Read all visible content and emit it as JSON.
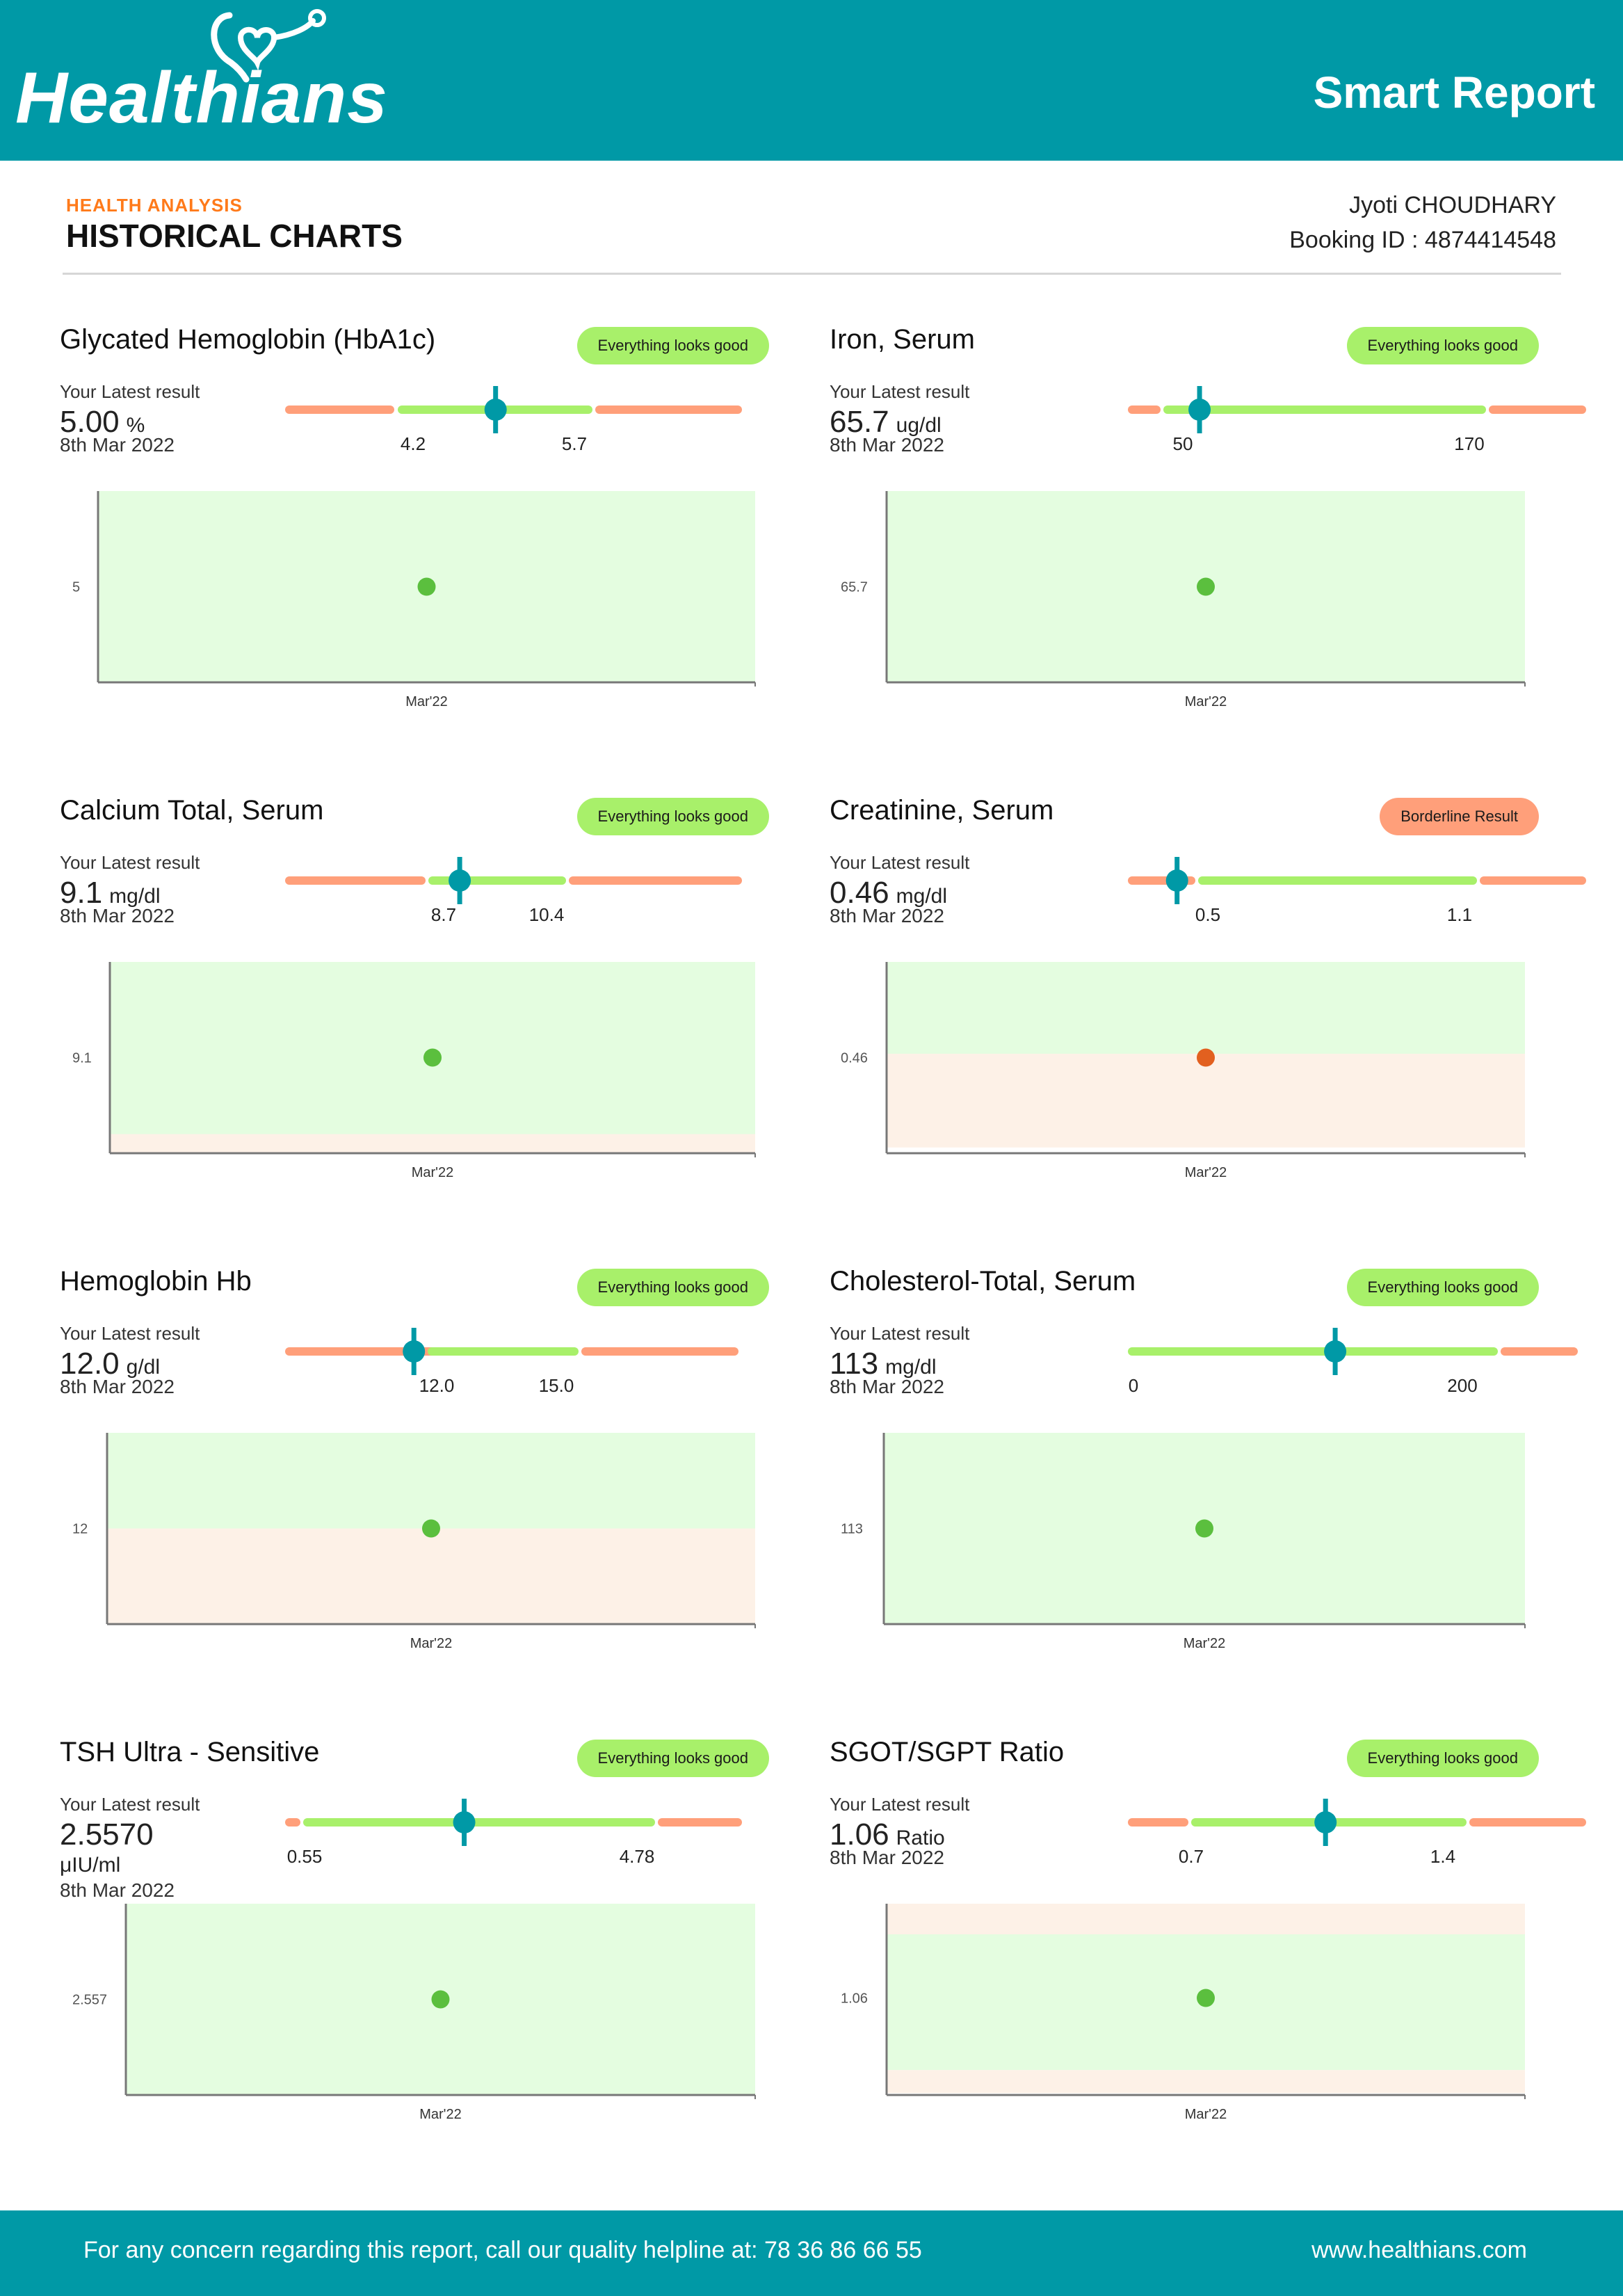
{
  "header": {
    "logo_text": "Healthians",
    "title": "Smart Report"
  },
  "section": {
    "label": "HEALTH ANALYSIS",
    "title": "HISTORICAL CHARTS"
  },
  "patient": {
    "name": "Jyoti CHOUDHARY",
    "booking_label": "Booking ID :",
    "booking_id": "4874414548"
  },
  "colors": {
    "brand": "#0099a6",
    "normal": "#a8f06a",
    "abnormal": "#ff9f7a",
    "normal_zone": "#e4fde0",
    "abnormal_zone": "#fdf1e7",
    "good_dot": "#5bbf3e",
    "bad_dot": "#e2601f"
  },
  "latest_label": "Your Latest result",
  "tests": [
    {
      "title": "Glycated Hemoglobin (HbA1c)",
      "badge": "Everything looks good",
      "status": "good",
      "value": "5.00",
      "unit": "%",
      "date": "8th Mar 2022",
      "low": "4.2",
      "high": "5.7",
      "marker_fraction": 0.46,
      "chart_data": {
        "type": "scatter",
        "x": [
          "Mar'22"
        ],
        "y": [
          5
        ],
        "ytick_labels": [
          "5"
        ],
        "normal_range": [
          4.2,
          5.7
        ],
        "zones": [
          {
            "band": "normal",
            "from": 0,
            "to": 1
          }
        ]
      }
    },
    {
      "title": "Iron, Serum",
      "badge": "Everything looks good",
      "status": "good",
      "value": "65.7",
      "unit": "ug/dl",
      "date": "8th Mar 2022",
      "low": "50",
      "high": "170",
      "marker_fraction": 0.15,
      "chart_data": {
        "type": "scatter",
        "x": [
          "Mar'22"
        ],
        "y": [
          65.7
        ],
        "ytick_labels": [
          "65.7"
        ],
        "normal_range": [
          50,
          170
        ],
        "zones": [
          {
            "band": "normal",
            "from": 0,
            "to": 1
          }
        ]
      }
    },
    {
      "title": "Calcium Total, Serum",
      "badge": "Everything looks good",
      "status": "good",
      "value": "9.1",
      "unit": "mg/dl",
      "date": "8th Mar 2022",
      "low": "8.7",
      "high": "10.4",
      "marker_fraction": 0.38,
      "chart_data": {
        "type": "scatter",
        "x": [
          "Mar'22"
        ],
        "y": [
          9.1
        ],
        "ytick_labels": [
          "9.1"
        ],
        "normal_range": [
          8.7,
          10.4
        ],
        "zones": [
          {
            "band": "normal",
            "from": 0,
            "to": 0.9
          },
          {
            "band": "abnormal",
            "from": 0.9,
            "to": 1
          }
        ]
      }
    },
    {
      "title": "Creatinine, Serum",
      "badge": "Borderline Result",
      "status": "borderline",
      "value": "0.46",
      "unit": "mg/dl",
      "date": "8th Mar 2022",
      "low": "0.5",
      "high": "1.1",
      "marker_fraction": 0.1,
      "chart_data": {
        "type": "scatter",
        "x": [
          "Mar'22"
        ],
        "y": [
          0.46
        ],
        "ytick_labels": [
          "0.46"
        ],
        "normal_range": [
          0.5,
          1.1
        ],
        "zones": [
          {
            "band": "normal",
            "from": 0,
            "to": 0.48
          },
          {
            "band": "abnormal",
            "from": 0.48,
            "to": 0.97
          }
        ]
      }
    },
    {
      "title": "Hemoglobin Hb",
      "badge": "Everything looks good",
      "status": "good",
      "value": "12.0",
      "unit": "g/dl",
      "date": "8th Mar 2022",
      "low": "12.0",
      "high": "15.0",
      "marker_fraction": 0.28,
      "chart_data": {
        "type": "scatter",
        "x": [
          "Mar'22"
        ],
        "y": [
          12
        ],
        "ytick_labels": [
          "12"
        ],
        "normal_range": [
          12.0,
          15.0
        ],
        "zones": [
          {
            "band": "normal",
            "from": 0,
            "to": 0.5
          },
          {
            "band": "abnormal",
            "from": 0.5,
            "to": 1
          }
        ]
      }
    },
    {
      "title": "Cholesterol-Total, Serum",
      "badge": "Everything looks good",
      "status": "good",
      "value": "113",
      "unit": "mg/dl",
      "date": "8th Mar 2022",
      "low": "0",
      "high": "200",
      "marker_fraction": 0.46,
      "chart_data": {
        "type": "scatter",
        "x": [
          "Mar'22"
        ],
        "y": [
          113
        ],
        "ytick_labels": [
          "113"
        ],
        "normal_range": [
          0,
          200
        ],
        "zones": [
          {
            "band": "normal",
            "from": 0,
            "to": 1
          }
        ]
      }
    },
    {
      "title": "TSH Ultra - Sensitive",
      "badge": "Everything looks good",
      "status": "good",
      "value": "2.5570",
      "unit": "μIU/ml",
      "date": "8th Mar 2022",
      "low": "0.55",
      "high": "4.78",
      "marker_fraction": 0.39,
      "chart_data": {
        "type": "scatter",
        "x": [
          "Mar'22"
        ],
        "y": [
          2.557
        ],
        "ytick_labels": [
          "2.557"
        ],
        "normal_range": [
          0.55,
          4.78
        ],
        "zones": [
          {
            "band": "normal",
            "from": 0,
            "to": 1
          }
        ]
      }
    },
    {
      "title": "SGOT/SGPT Ratio",
      "badge": "Everything looks good",
      "status": "good",
      "value": "1.06",
      "unit": "Ratio",
      "date": "8th Mar 2022",
      "low": "0.7",
      "high": "1.4",
      "marker_fraction": 0.43,
      "chart_data": {
        "type": "scatter",
        "x": [
          "Mar'22"
        ],
        "y": [
          1.06
        ],
        "ytick_labels": [
          "1.06"
        ],
        "normal_range": [
          0.7,
          1.4
        ],
        "zones": [
          {
            "band": "abnormal",
            "from": 0,
            "to": 0.16
          },
          {
            "band": "normal",
            "from": 0.16,
            "to": 0.87
          },
          {
            "band": "abnormal",
            "from": 0.87,
            "to": 0.99
          }
        ]
      }
    }
  ],
  "footer": {
    "helpline": "For any concern regarding this report, call our quality helpline at: 78 36 86 66 55",
    "website": "www.healthians.com"
  }
}
